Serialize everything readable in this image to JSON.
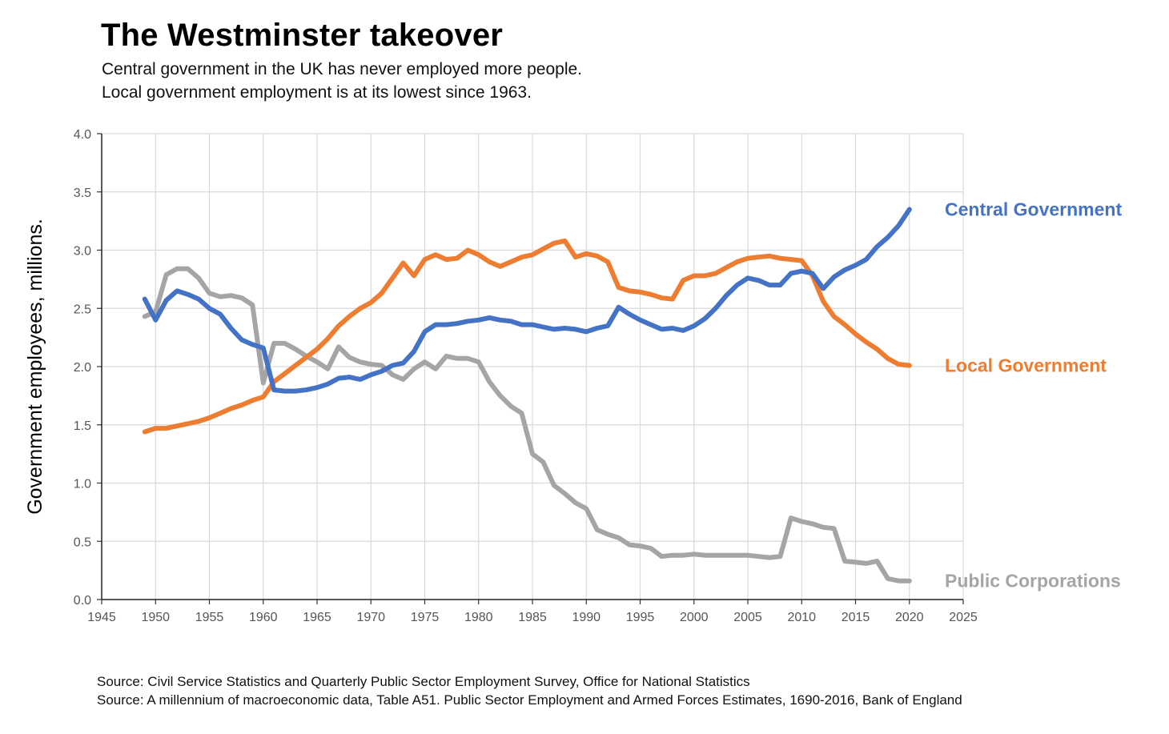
{
  "title": "The Westminster takeover",
  "subtitle_lines": [
    "Central government in the UK has never employed more people.",
    "Local government employment is at its lowest since 1963."
  ],
  "sources": [
    "Source: Civil Service Statistics and Quarterly Public Sector Employment Survey, Office for National Statistics",
    "Source: A millennium of macroeconomic data, Table A51. Public Sector Employment and Armed Forces Estimates, 1690-2016, Bank of England"
  ],
  "chart_data": {
    "type": "line",
    "title": "The Westminster takeover",
    "xlabel": "",
    "ylabel": "Government employees, millions.",
    "xlim": [
      1945,
      2025
    ],
    "ylim": [
      0,
      4
    ],
    "x_ticks": [
      1945,
      1950,
      1955,
      1960,
      1965,
      1970,
      1975,
      1980,
      1985,
      1990,
      1995,
      2000,
      2005,
      2010,
      2015,
      2020,
      2025
    ],
    "y_ticks": [
      "0.0",
      "0.5",
      "1.0",
      "1.5",
      "2.0",
      "2.5",
      "3.0",
      "3.5",
      "4.0"
    ],
    "grid": true,
    "legend": "direct labels at right end of each series",
    "series": [
      {
        "name": "Central Government",
        "color": "#4472C4",
        "x": [
          1949,
          1950,
          1951,
          1952,
          1953,
          1954,
          1955,
          1956,
          1957,
          1958,
          1959,
          1960,
          1961,
          1962,
          1963,
          1964,
          1965,
          1966,
          1967,
          1968,
          1969,
          1970,
          1971,
          1972,
          1973,
          1974,
          1975,
          1976,
          1977,
          1978,
          1979,
          1980,
          1981,
          1982,
          1983,
          1984,
          1985,
          1986,
          1987,
          1988,
          1989,
          1990,
          1991,
          1992,
          1993,
          1994,
          1995,
          1996,
          1997,
          1998,
          1999,
          2000,
          2001,
          2002,
          2003,
          2004,
          2005,
          2006,
          2007,
          2008,
          2009,
          2010,
          2011,
          2012,
          2013,
          2014,
          2015,
          2016,
          2017,
          2018,
          2019,
          2020
        ],
        "values": [
          2.58,
          2.4,
          2.57,
          2.65,
          2.62,
          2.58,
          2.5,
          2.45,
          2.33,
          2.23,
          2.19,
          2.16,
          1.8,
          1.79,
          1.79,
          1.8,
          1.82,
          1.85,
          1.9,
          1.91,
          1.89,
          1.93,
          1.96,
          2.01,
          2.03,
          2.13,
          2.3,
          2.36,
          2.36,
          2.37,
          2.39,
          2.4,
          2.42,
          2.4,
          2.39,
          2.36,
          2.36,
          2.34,
          2.32,
          2.33,
          2.32,
          2.3,
          2.33,
          2.35,
          2.51,
          2.45,
          2.4,
          2.36,
          2.32,
          2.33,
          2.31,
          2.35,
          2.41,
          2.5,
          2.61,
          2.7,
          2.76,
          2.74,
          2.7,
          2.7,
          2.8,
          2.82,
          2.8,
          2.67,
          2.77,
          2.83,
          2.87,
          2.92,
          3.03,
          3.11,
          3.21,
          3.35
        ]
      },
      {
        "name": "Local Government",
        "color": "#ED7D31",
        "x": [
          1949,
          1950,
          1951,
          1952,
          1953,
          1954,
          1955,
          1956,
          1957,
          1958,
          1959,
          1960,
          1961,
          1962,
          1963,
          1964,
          1965,
          1966,
          1967,
          1968,
          1969,
          1970,
          1971,
          1972,
          1973,
          1974,
          1975,
          1976,
          1977,
          1978,
          1979,
          1980,
          1981,
          1982,
          1983,
          1984,
          1985,
          1986,
          1987,
          1988,
          1989,
          1990,
          1991,
          1992,
          1993,
          1994,
          1995,
          1996,
          1997,
          1998,
          1999,
          2000,
          2001,
          2002,
          2003,
          2004,
          2005,
          2006,
          2007,
          2008,
          2009,
          2010,
          2011,
          2012,
          2013,
          2014,
          2015,
          2016,
          2017,
          2018,
          2019,
          2020
        ],
        "values": [
          1.44,
          1.47,
          1.47,
          1.49,
          1.51,
          1.53,
          1.56,
          1.6,
          1.64,
          1.67,
          1.71,
          1.74,
          1.87,
          1.94,
          2.01,
          2.08,
          2.15,
          2.24,
          2.35,
          2.43,
          2.5,
          2.55,
          2.63,
          2.76,
          2.89,
          2.78,
          2.92,
          2.96,
          2.92,
          2.93,
          3.0,
          2.96,
          2.9,
          2.86,
          2.9,
          2.94,
          2.96,
          3.01,
          3.06,
          3.08,
          2.94,
          2.97,
          2.95,
          2.9,
          2.68,
          2.65,
          2.64,
          2.62,
          2.59,
          2.58,
          2.74,
          2.78,
          2.78,
          2.8,
          2.85,
          2.9,
          2.93,
          2.94,
          2.95,
          2.93,
          2.92,
          2.91,
          2.78,
          2.56,
          2.43,
          2.36,
          2.28,
          2.21,
          2.15,
          2.07,
          2.02,
          2.01
        ]
      },
      {
        "name": "Public Corporations",
        "color": "#A5A5A5",
        "x": [
          1949,
          1950,
          1951,
          1952,
          1953,
          1954,
          1955,
          1956,
          1957,
          1958,
          1959,
          1960,
          1961,
          1962,
          1963,
          1964,
          1965,
          1966,
          1967,
          1968,
          1969,
          1970,
          1971,
          1972,
          1973,
          1974,
          1975,
          1976,
          1977,
          1978,
          1979,
          1980,
          1981,
          1982,
          1983,
          1984,
          1985,
          1986,
          1987,
          1988,
          1989,
          1990,
          1991,
          1992,
          1993,
          1994,
          1995,
          1996,
          1997,
          1998,
          1999,
          2000,
          2001,
          2002,
          2003,
          2004,
          2005,
          2006,
          2007,
          2008,
          2009,
          2010,
          2011,
          2012,
          2013,
          2014,
          2015,
          2016,
          2017,
          2018,
          2019,
          2020
        ],
        "values": [
          2.43,
          2.47,
          2.79,
          2.84,
          2.84,
          2.76,
          2.63,
          2.6,
          2.61,
          2.59,
          2.53,
          1.86,
          2.2,
          2.2,
          2.15,
          2.09,
          2.04,
          1.98,
          2.17,
          2.08,
          2.04,
          2.02,
          2.01,
          1.93,
          1.89,
          1.98,
          2.04,
          1.98,
          2.09,
          2.07,
          2.07,
          2.04,
          1.87,
          1.75,
          1.66,
          1.6,
          1.25,
          1.18,
          0.98,
          0.91,
          0.83,
          0.78,
          0.6,
          0.56,
          0.53,
          0.47,
          0.46,
          0.44,
          0.37,
          0.38,
          0.38,
          0.39,
          0.38,
          0.38,
          0.38,
          0.38,
          0.38,
          0.37,
          0.36,
          0.37,
          0.7,
          0.67,
          0.65,
          0.62,
          0.61,
          0.33,
          0.32,
          0.31,
          0.33,
          0.18,
          0.16,
          0.16
        ]
      }
    ]
  }
}
